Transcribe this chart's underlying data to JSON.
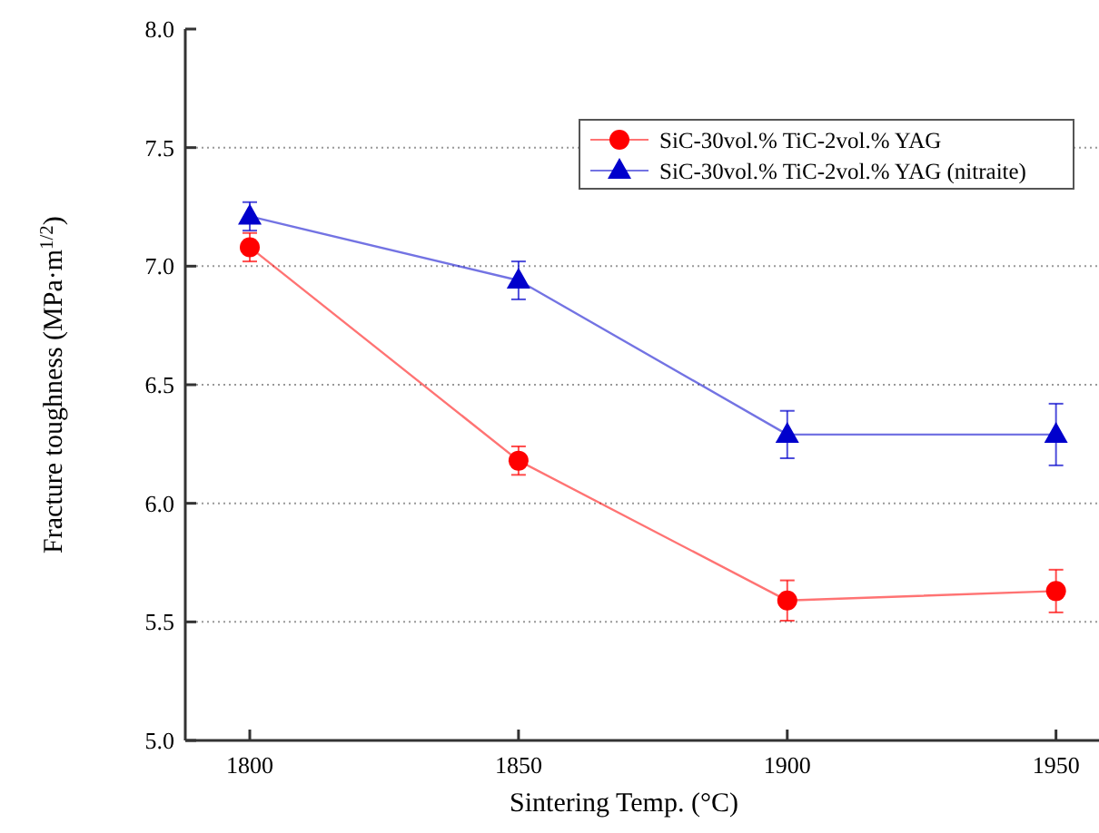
{
  "chart_data": {
    "type": "line",
    "xlabel": "Sintering Temp. (°C)",
    "ylabel": "Fracture toughness (MPa·m$^{1/2}$)",
    "x": [
      1800,
      1850,
      1900,
      1950
    ],
    "xlim": [
      1788,
      1958
    ],
    "xticks": [
      1800,
      1850,
      1900,
      1950
    ],
    "ylim": [
      5,
      8
    ],
    "yticks": [
      {
        "value": 5,
        "label": "5.0"
      },
      {
        "value": 5.5,
        "label": "5.5"
      },
      {
        "value": 6,
        "label": "6.0"
      },
      {
        "value": 6.5,
        "label": "6.5"
      },
      {
        "value": 7,
        "label": "7.0"
      },
      {
        "value": 7.5,
        "label": "7.5"
      },
      {
        "value": 8,
        "label": "8.0"
      }
    ],
    "grid": "y",
    "legend": "top right",
    "line_style": "solid",
    "series": [
      {
        "name": "SiC-30vol.% TiC-2vol.% YAG",
        "color": "#ff0000",
        "marker": "circle",
        "values": [
          7.08,
          6.18,
          5.59,
          5.63
        ],
        "errors": [
          0.06,
          0.06,
          0.085,
          0.09
        ]
      },
      {
        "name": "SiC-30vol.% TiC-2vol.% YAG (nitraite)",
        "color": "#0000cc",
        "marker": "triangle",
        "values": [
          7.21,
          6.94,
          6.29,
          6.29
        ],
        "errors": [
          0.06,
          0.08,
          0.1,
          0.13
        ]
      }
    ]
  }
}
